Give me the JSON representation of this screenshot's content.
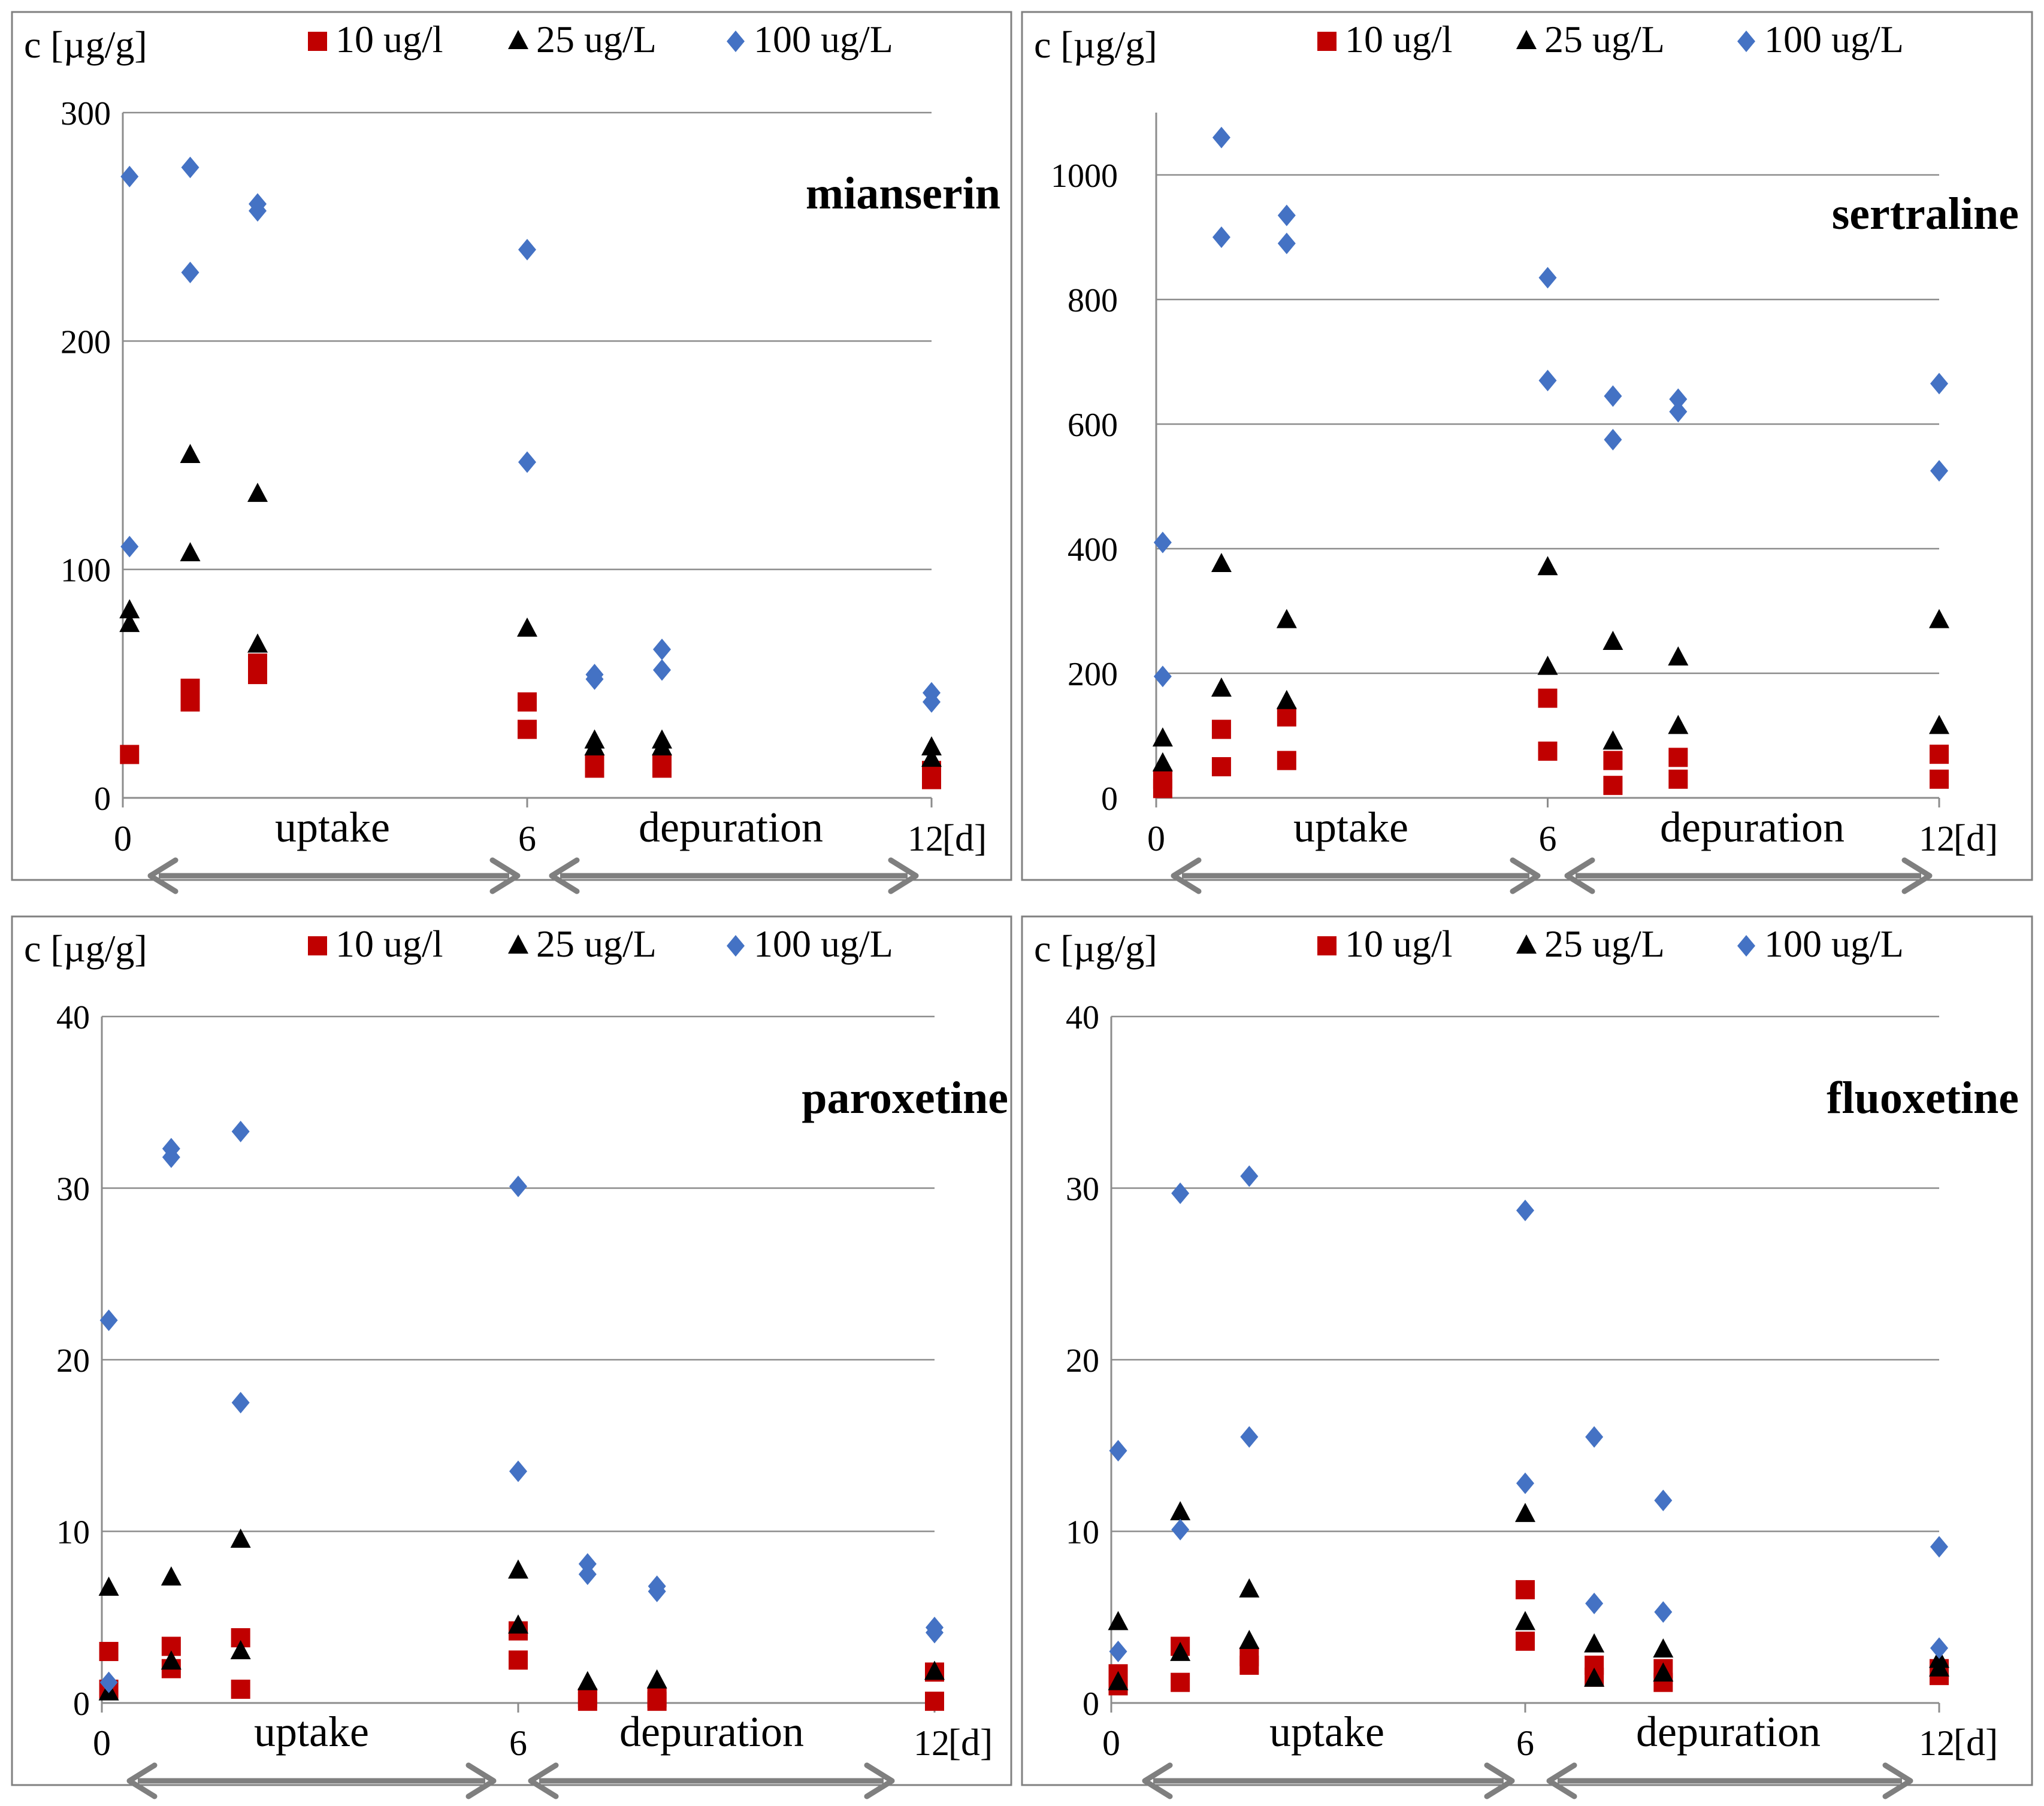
{
  "series_colors": {
    "s10": "#c00000",
    "s25": "#000000",
    "s100": "#4472c4"
  },
  "marker_shapes": {
    "s10": "square",
    "s25": "triangle",
    "s100": "diamond"
  },
  "chart_data": [
    {
      "type": "scatter",
      "title": "mianserin",
      "ylabel": "c [µg/g]",
      "x_unit": "[d]",
      "xlim": [
        0,
        12
      ],
      "ylim": [
        0,
        300
      ],
      "y_ticks": [
        0,
        100,
        200,
        300
      ],
      "x_ticks": [
        {
          "value": 0,
          "label": "0"
        },
        {
          "value": 6,
          "label": "6"
        },
        {
          "value": 12,
          "label": "12"
        }
      ],
      "phase_labels": [
        "uptake",
        "depuration"
      ],
      "legend": [
        "10 ug/l",
        "25 ug/L",
        "100 ug/L"
      ],
      "series": [
        {
          "name": "10 ug/l",
          "x": [
            0.1,
            1,
            1,
            2,
            2,
            6,
            6,
            7,
            7,
            8,
            8,
            12,
            12
          ],
          "y": [
            19,
            48,
            42,
            54,
            59,
            42,
            30,
            15,
            13,
            15,
            13,
            12,
            8
          ]
        },
        {
          "name": "25 ug/L",
          "x": [
            0.1,
            0.1,
            1,
            1,
            2,
            2,
            6,
            7,
            7,
            8,
            8,
            12,
            12
          ],
          "y": [
            82,
            76,
            150,
            107,
            133,
            67,
            74,
            25,
            22,
            25,
            22,
            22,
            17
          ]
        },
        {
          "name": "100 ug/L",
          "x": [
            0.1,
            0.1,
            1,
            1,
            2,
            2,
            6,
            6,
            7,
            7,
            8,
            8,
            12,
            12
          ],
          "y": [
            272,
            110,
            276,
            230,
            260,
            257,
            240,
            147,
            54,
            52,
            65,
            56,
            46,
            42
          ]
        }
      ]
    },
    {
      "type": "scatter",
      "title": "sertraline",
      "ylabel": "c [µg/g]",
      "x_unit": "[d]",
      "xlim": [
        0,
        12
      ],
      "ylim": [
        0,
        1100
      ],
      "y_ticks": [
        0,
        200,
        400,
        600,
        800,
        1000
      ],
      "x_ticks": [
        {
          "value": 0,
          "label": "0"
        },
        {
          "value": 6,
          "label": "6"
        },
        {
          "value": 12,
          "label": "12"
        }
      ],
      "phase_labels": [
        "uptake",
        "depuration"
      ],
      "legend": [
        "10 ug/l",
        "25 ug/L",
        "100 ug/L"
      ],
      "series": [
        {
          "name": "10 ug/l",
          "x": [
            0.1,
            0.1,
            1,
            1,
            2,
            2,
            6,
            6,
            7,
            7,
            8,
            8,
            12,
            12
          ],
          "y": [
            30,
            15,
            110,
            50,
            130,
            60,
            160,
            75,
            60,
            20,
            65,
            30,
            70,
            30
          ]
        },
        {
          "name": "25 ug/L",
          "x": [
            0.1,
            0.1,
            1,
            1,
            2,
            2,
            6,
            6,
            7,
            7,
            8,
            8,
            12,
            12
          ],
          "y": [
            95,
            55,
            375,
            175,
            285,
            155,
            370,
            210,
            250,
            90,
            225,
            115,
            285,
            115
          ]
        },
        {
          "name": "100 ug/L",
          "x": [
            0.1,
            0.1,
            1,
            1,
            2,
            2,
            6,
            6,
            7,
            7,
            8,
            8,
            12,
            12
          ],
          "y": [
            410,
            195,
            1060,
            900,
            935,
            890,
            835,
            670,
            645,
            575,
            640,
            620,
            665,
            525
          ]
        }
      ]
    },
    {
      "type": "scatter",
      "title": "paroxetine",
      "ylabel": "c [µg/g]",
      "x_unit": "[d]",
      "xlim": [
        0,
        12
      ],
      "ylim": [
        0,
        40
      ],
      "y_ticks": [
        0,
        10,
        20,
        30,
        40
      ],
      "x_ticks": [
        {
          "value": 0,
          "label": "0"
        },
        {
          "value": 6,
          "label": "6"
        },
        {
          "value": 12,
          "label": "12"
        }
      ],
      "phase_labels": [
        "uptake",
        "depuration"
      ],
      "legend": [
        "10 ug/l",
        "25 ug/L",
        "100 ug/L"
      ],
      "series": [
        {
          "name": "10 ug/l",
          "x": [
            0.1,
            0.1,
            1,
            1,
            2,
            2,
            6,
            6,
            7,
            7,
            8,
            8,
            12,
            12
          ],
          "y": [
            3.0,
            0.8,
            3.3,
            2.0,
            3.8,
            0.8,
            4.2,
            2.5,
            0.3,
            0.1,
            0.3,
            0.1,
            1.8,
            0.1
          ]
        },
        {
          "name": "25 ug/L",
          "x": [
            0.1,
            0.1,
            1,
            1,
            2,
            2,
            6,
            6,
            7,
            8,
            12
          ],
          "y": [
            6.7,
            0.6,
            7.3,
            2.4,
            9.5,
            3.0,
            7.7,
            4.5,
            1.2,
            1.3,
            1.8
          ]
        },
        {
          "name": "100 ug/L",
          "x": [
            0.1,
            0.1,
            1,
            1,
            2,
            2,
            6,
            6,
            7,
            7,
            8,
            8,
            12,
            12
          ],
          "y": [
            22.3,
            1.2,
            32.3,
            31.8,
            33.3,
            17.5,
            30.1,
            13.5,
            8.1,
            7.5,
            6.8,
            6.5,
            4.4,
            4.1
          ]
        }
      ]
    },
    {
      "type": "scatter",
      "title": "fluoxetine",
      "ylabel": "c [µg/g]",
      "x_unit": "[d]",
      "xlim": [
        0,
        12
      ],
      "ylim": [
        0,
        40
      ],
      "y_ticks": [
        0,
        10,
        20,
        30,
        40
      ],
      "x_ticks": [
        {
          "value": 0,
          "label": "0"
        },
        {
          "value": 6,
          "label": "6"
        },
        {
          "value": 12,
          "label": "12"
        }
      ],
      "phase_labels": [
        "uptake",
        "depuration"
      ],
      "legend": [
        "10 ug/l",
        "25 ug/L",
        "100 ug/L"
      ],
      "series": [
        {
          "name": "10 ug/l",
          "x": [
            0.1,
            0.1,
            1,
            1,
            2,
            2,
            6,
            6,
            7,
            7,
            8,
            8,
            12,
            12
          ],
          "y": [
            1.7,
            1.0,
            3.3,
            1.2,
            2.7,
            2.2,
            6.6,
            3.6,
            2.2,
            1.5,
            2.0,
            1.2,
            2.0,
            1.6
          ]
        },
        {
          "name": "25 ug/L",
          "x": [
            0.1,
            0.1,
            1,
            1,
            2,
            2,
            6,
            6,
            7,
            7,
            8,
            8,
            12,
            12
          ],
          "y": [
            4.7,
            1.2,
            11.1,
            2.9,
            6.6,
            3.6,
            11.0,
            4.7,
            3.4,
            1.4,
            3.1,
            1.7,
            2.5,
            2.0
          ]
        },
        {
          "name": "100 ug/L",
          "x": [
            0.1,
            0.1,
            1,
            1,
            2,
            2,
            6,
            6,
            7,
            7,
            8,
            8,
            12,
            12
          ],
          "y": [
            14.7,
            3.0,
            29.7,
            10.1,
            30.7,
            15.5,
            28.7,
            12.8,
            15.5,
            5.8,
            11.8,
            5.3,
            9.1,
            3.2
          ]
        }
      ]
    }
  ]
}
